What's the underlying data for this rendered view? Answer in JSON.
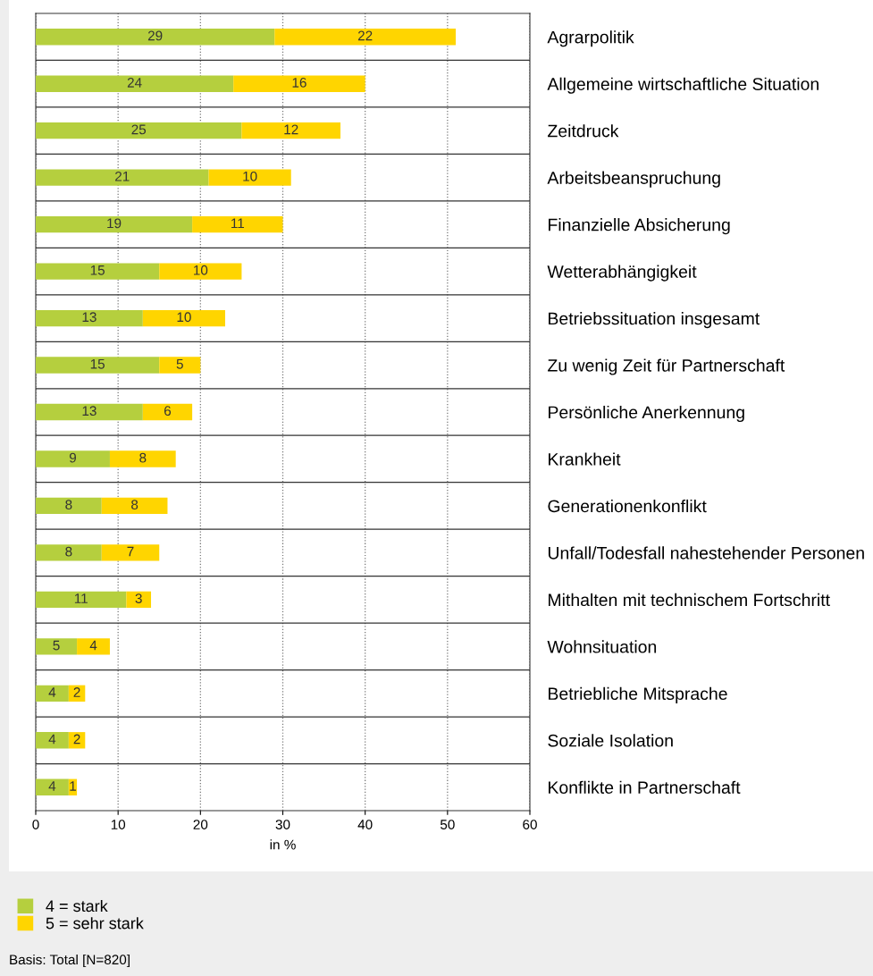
{
  "chart_data": {
    "type": "bar",
    "orientation": "horizontal",
    "stacked": true,
    "categories": [
      "Agrarpolitik",
      "Allgemeine wirtschaftliche Situation",
      "Zeitdruck",
      "Arbeitsbeanspruchung",
      "Finanzielle Absicherung",
      "Wetterabhängigkeit",
      "Betriebssituation insgesamt",
      "Zu wenig Zeit für Partnerschaft",
      "Persönliche Anerkennung",
      "Krankheit",
      "Generationenkonflikt",
      "Unfall/Todesfall nahestehender Personen",
      "Mithalten mit technischem Fortschritt",
      "Wohnsituation",
      "Betriebliche Mitsprache",
      "Soziale Isolation",
      "Konflikte in Partnerschaft"
    ],
    "series": [
      {
        "name": "4 = stark",
        "color": "#b5cf3e",
        "values": [
          29,
          24,
          25,
          21,
          19,
          15,
          13,
          15,
          13,
          9,
          8,
          8,
          11,
          5,
          4,
          4,
          4
        ]
      },
      {
        "name": "5 = sehr stark",
        "color": "#ffd500",
        "values": [
          22,
          16,
          12,
          10,
          11,
          10,
          10,
          5,
          6,
          8,
          8,
          7,
          3,
          4,
          2,
          2,
          1
        ]
      }
    ],
    "xlim": [
      0,
      60
    ],
    "xticks": [
      0,
      10,
      20,
      30,
      40,
      50,
      60
    ],
    "xlabel": "in %",
    "data_labels": true,
    "grid": true,
    "legend": "bottom left",
    "annotations": [
      "Basis: Total [N=820]"
    ]
  }
}
